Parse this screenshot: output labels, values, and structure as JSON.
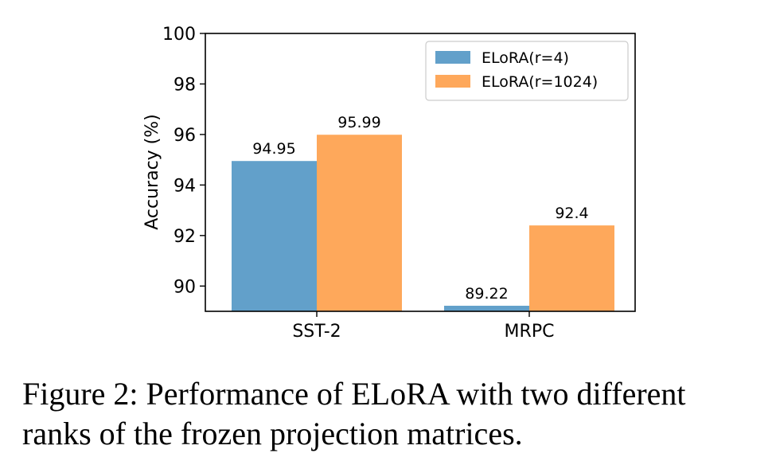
{
  "chart_data": {
    "type": "bar",
    "categories": [
      "SST-2",
      "MRPC"
    ],
    "series": [
      {
        "name": "ELoRA(r=4)",
        "values": [
          94.95,
          89.22
        ],
        "labels": [
          "94.95",
          "89.22"
        ],
        "color": "#62a0ca"
      },
      {
        "name": "ELoRA(r=1024)",
        "values": [
          95.99,
          92.4
        ],
        "labels": [
          "95.99",
          "92.4"
        ],
        "color": "#fea85b"
      }
    ],
    "ylabel": "Accuracy (%)",
    "ylim": [
      89,
      100
    ],
    "yticks": [
      90,
      92,
      94,
      96,
      98,
      100
    ],
    "grid": false,
    "legend_position": "top-right"
  },
  "caption": {
    "line1": "Figure 2: Performance of ELoRA with two different",
    "line2": "ranks of the frozen projection matrices."
  }
}
